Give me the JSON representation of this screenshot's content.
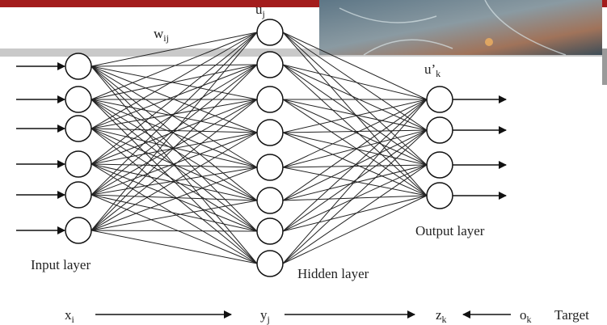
{
  "weight_label": {
    "base": "w",
    "sub": "ij"
  },
  "hidden_label": {
    "base": "u",
    "sub": "j"
  },
  "output_label": {
    "base": "u’",
    "sub": "k"
  },
  "layers": {
    "input": "Input layer",
    "hidden": "Hidden layer",
    "output": "Output layer"
  },
  "flow": {
    "input": {
      "base": "x",
      "sub": "i"
    },
    "hidden": {
      "base": "y",
      "sub": "j"
    },
    "output": {
      "base": "z",
      "sub": "k"
    },
    "target": {
      "base": "o",
      "sub": "k"
    },
    "target_text": "Target"
  }
}
